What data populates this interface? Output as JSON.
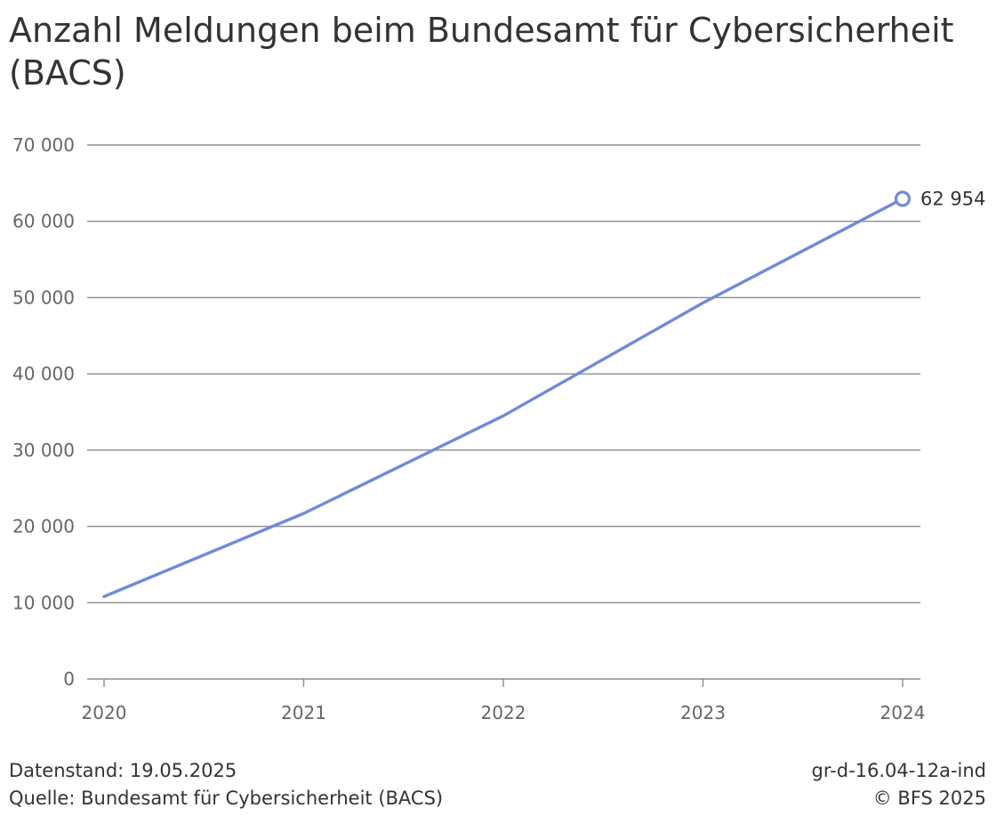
{
  "title": "Anzahl Meldungen beim Bundesamt für Cybersicherheit (BACS)",
  "footer": {
    "datenstand": "Datenstand: 19.05.2025",
    "quelle": "Quelle: Bundesamt für Cybersicherheit (BACS)",
    "code": "gr-d-16.04-12a-ind",
    "copyright": "© BFS 2025"
  },
  "colors": {
    "line": "#6f8bd6",
    "grid": "#8c8c8c",
    "tick_text": "#666666",
    "label_text": "#333333"
  },
  "chart_data": {
    "type": "line",
    "x": [
      "2020",
      "2021",
      "2022",
      "2023",
      "2024"
    ],
    "series": [
      {
        "values": [
          10800,
          21700,
          34500,
          49300,
          62954
        ]
      }
    ],
    "yticks": [
      0,
      10000,
      20000,
      30000,
      40000,
      50000,
      60000,
      70000
    ],
    "ytick_labels": [
      "0",
      "10 000",
      "20 000",
      "30 000",
      "40 000",
      "50 000",
      "60 000",
      "70 000"
    ],
    "ylim": [
      0,
      70000
    ],
    "end_label": "62 954",
    "grid": true,
    "legend": "none",
    "xlabel": "",
    "ylabel": ""
  }
}
